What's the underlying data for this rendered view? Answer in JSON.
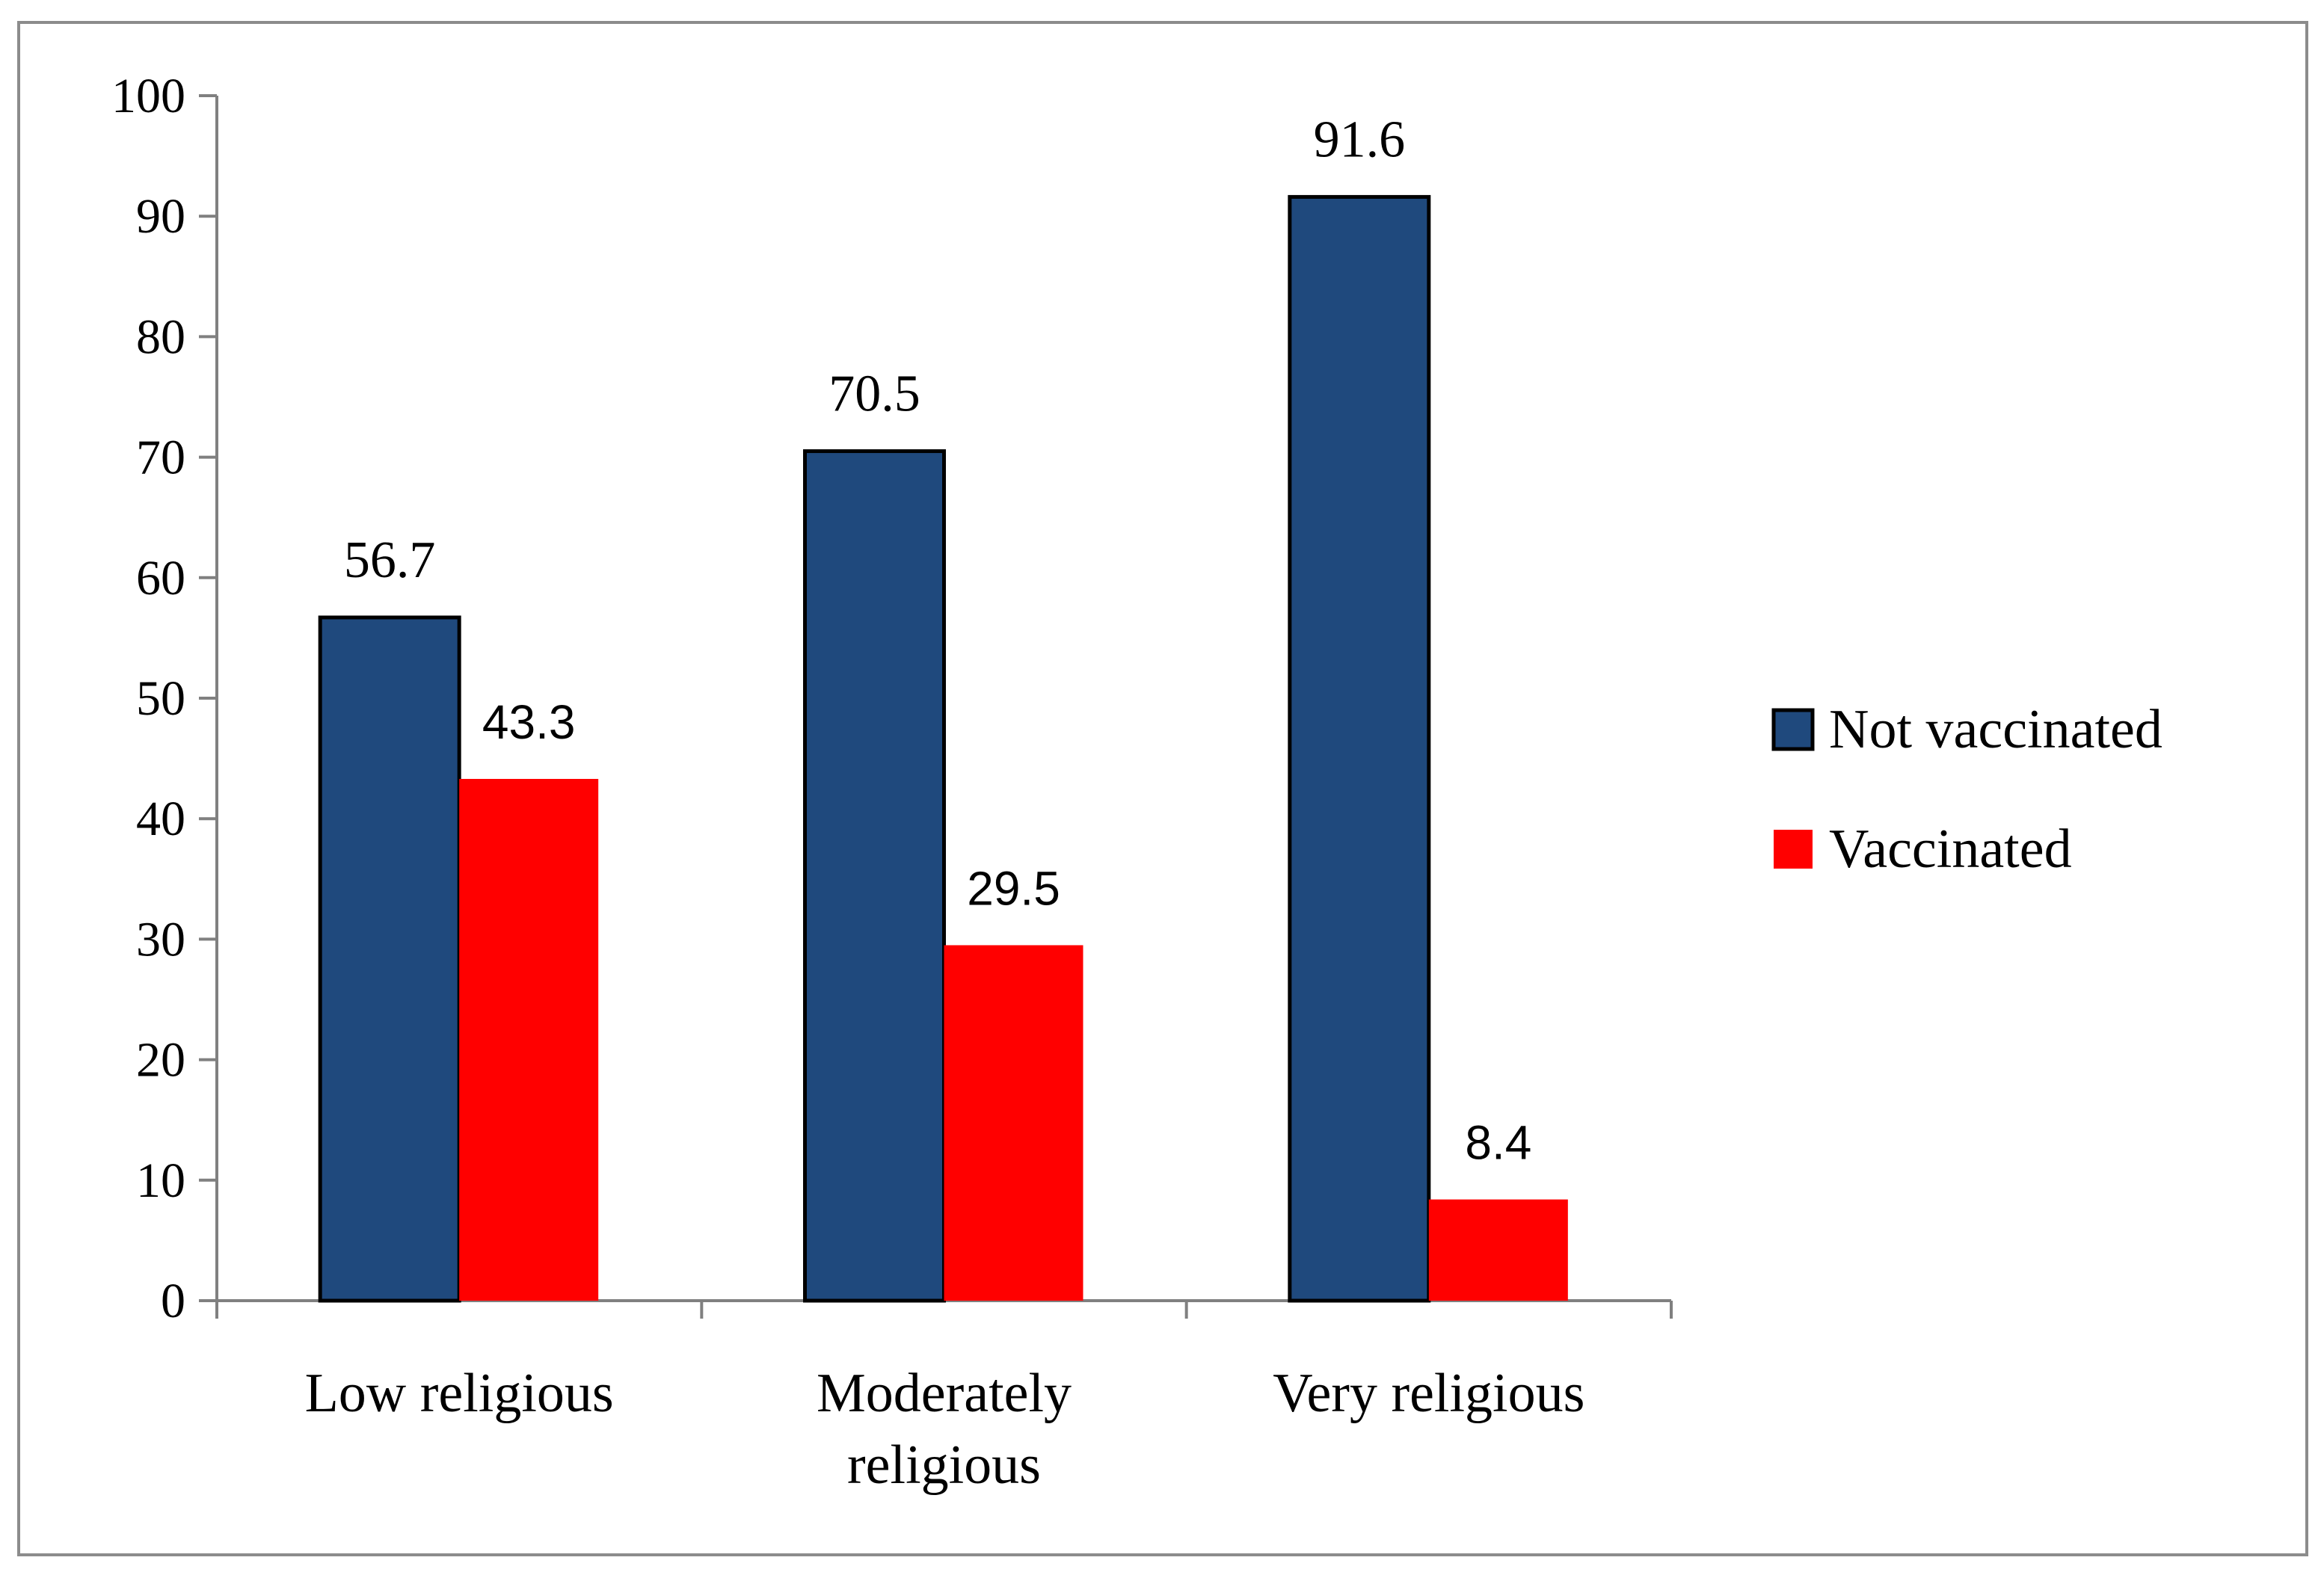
{
  "chart_data": {
    "type": "bar",
    "title": "",
    "xlabel": "",
    "ylabel": "",
    "ylim": [
      0,
      100
    ],
    "yticks": [
      0,
      10,
      20,
      30,
      40,
      50,
      60,
      70,
      80,
      90,
      100
    ],
    "categories": [
      [
        "Low religious"
      ],
      [
        "Moderately",
        "religious"
      ],
      [
        "Very religious"
      ]
    ],
    "series": [
      {
        "name": "Not vaccinated",
        "color": "#1F497D",
        "values": [
          56.7,
          70.5,
          91.6
        ],
        "labels": [
          "56.7",
          "70.5",
          "91.6"
        ]
      },
      {
        "name": "Vaccinated",
        "color": "#FF0000",
        "values": [
          43.3,
          29.5,
          8.4
        ],
        "labels": [
          "43.3",
          "29.5",
          "8.4"
        ]
      }
    ],
    "legend_position": "right",
    "grid": false
  }
}
